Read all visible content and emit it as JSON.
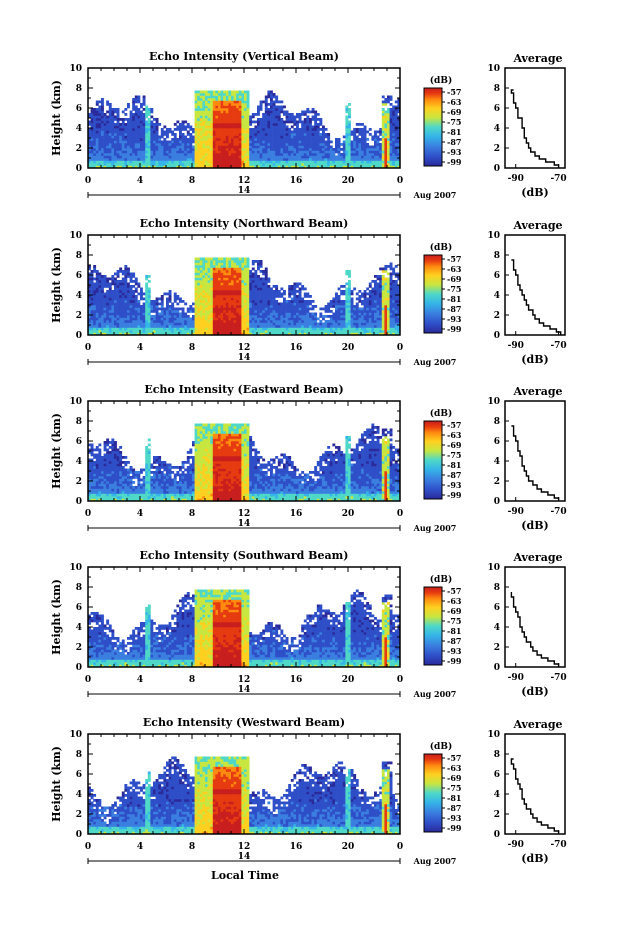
{
  "figure": {
    "xlabel": "Local Time",
    "date_label": "Aug 2007",
    "day_label": "14",
    "colorbar_unit": "(dB)",
    "colorbar_ticks": [
      "-57",
      "-63",
      "-69",
      "-75",
      "-81",
      "-87",
      "-93",
      "-99"
    ],
    "colors": {
      "colormap": [
        "#2a2a9a",
        "#2f4fc8",
        "#3a7fe0",
        "#35b5e8",
        "#4fd8c8",
        "#c8e640",
        "#ffd020",
        "#ff8a10",
        "#e63a10",
        "#c81e1e"
      ]
    }
  },
  "chart_data": [
    {
      "type": "heatmap",
      "title": "Echo Intensity (Vertical Beam)",
      "xlabel": "",
      "ylabel": "Height (km)",
      "xlim": [
        0,
        24
      ],
      "ylim": [
        0,
        10
      ],
      "x_ticks": [
        "0",
        "4",
        "8",
        "12",
        "16",
        "20",
        "0"
      ],
      "y_ticks": [
        "0",
        "2",
        "4",
        "6",
        "8",
        "10"
      ],
      "colorbar": {
        "label": "(dB)",
        "ticks": [
          -57,
          -63,
          -69,
          -75,
          -81,
          -87,
          -93,
          -99
        ]
      },
      "average_profile": {
        "title": "Average",
        "xlabel": "(dB)",
        "x_ticks": [
          "-90",
          "-70"
        ],
        "xlim": [
          -95,
          -67
        ],
        "y_ticks": [
          "0",
          "2",
          "4",
          "6",
          "8",
          "10"
        ],
        "ylim": [
          0,
          10
        ],
        "height": [
          0.0,
          0.3,
          0.6,
          0.9,
          1.2,
          1.6,
          2.0,
          2.5,
          3.0,
          3.5,
          4.0,
          4.5,
          5.0,
          5.5,
          6.0,
          6.5,
          7.0,
          7.5,
          7.8
        ],
        "db": [
          -70,
          -72,
          -76,
          -79,
          -81,
          -83,
          -84,
          -85,
          -86,
          -86,
          -87,
          -87,
          -89,
          -89,
          -90,
          -91,
          -91,
          -92,
          -91
        ]
      }
    },
    {
      "type": "heatmap",
      "title": "Echo Intensity (Northward Beam)",
      "xlabel": "",
      "ylabel": "Height (km)",
      "xlim": [
        0,
        24
      ],
      "ylim": [
        0,
        10
      ],
      "x_ticks": [
        "0",
        "4",
        "8",
        "12",
        "16",
        "20",
        "0"
      ],
      "y_ticks": [
        "0",
        "2",
        "4",
        "6",
        "8",
        "10"
      ],
      "colorbar": {
        "label": "(dB)",
        "ticks": [
          -57,
          -63,
          -69,
          -75,
          -81,
          -87,
          -93,
          -99
        ]
      },
      "average_profile": {
        "title": "Average",
        "xlabel": "(dB)",
        "x_ticks": [
          "-90",
          "-70"
        ],
        "xlim": [
          -95,
          -67
        ],
        "y_ticks": [
          "0",
          "2",
          "4",
          "6",
          "8",
          "10"
        ],
        "ylim": [
          0,
          10
        ],
        "height": [
          0.0,
          0.3,
          0.6,
          0.9,
          1.2,
          1.6,
          2.0,
          2.5,
          3.0,
          3.5,
          4.0,
          4.5,
          5.0,
          5.5,
          6.0,
          6.5,
          7.0,
          7.5
        ],
        "db": [
          -69,
          -71,
          -74,
          -77,
          -79,
          -81,
          -82,
          -84,
          -85,
          -86,
          -87,
          -88,
          -89,
          -89,
          -90,
          -91,
          -91,
          -92
        ]
      }
    },
    {
      "type": "heatmap",
      "title": "Echo Intensity (Eastward Beam)",
      "xlabel": "",
      "ylabel": "Height (km)",
      "xlim": [
        0,
        24
      ],
      "ylim": [
        0,
        10
      ],
      "x_ticks": [
        "0",
        "4",
        "8",
        "12",
        "16",
        "20",
        "0"
      ],
      "y_ticks": [
        "0",
        "2",
        "4",
        "6",
        "8",
        "10"
      ],
      "colorbar": {
        "label": "(dB)",
        "ticks": [
          -57,
          -63,
          -69,
          -75,
          -81,
          -87,
          -93,
          -99
        ]
      },
      "average_profile": {
        "title": "Average",
        "xlabel": "(dB)",
        "x_ticks": [
          "-90",
          "-70"
        ],
        "xlim": [
          -95,
          -67
        ],
        "y_ticks": [
          "0",
          "2",
          "4",
          "6",
          "8",
          "10"
        ],
        "ylim": [
          0,
          10
        ],
        "height": [
          0.0,
          0.3,
          0.6,
          0.9,
          1.2,
          1.6,
          2.0,
          2.5,
          3.0,
          3.5,
          4.0,
          4.5,
          5.0,
          5.5,
          6.0,
          6.5,
          7.0,
          7.5
        ],
        "db": [
          -70,
          -72,
          -75,
          -78,
          -80,
          -82,
          -84,
          -85,
          -86,
          -87,
          -87,
          -88,
          -89,
          -89,
          -90,
          -91,
          -91,
          -92
        ]
      }
    },
    {
      "type": "heatmap",
      "title": "Echo Intensity (Southward Beam)",
      "xlabel": "",
      "ylabel": "Height (km)",
      "xlim": [
        0,
        24
      ],
      "ylim": [
        0,
        10
      ],
      "x_ticks": [
        "0",
        "4",
        "8",
        "12",
        "16",
        "20",
        "0"
      ],
      "y_ticks": [
        "0",
        "2",
        "4",
        "6",
        "8",
        "10"
      ],
      "colorbar": {
        "label": "(dB)",
        "ticks": [
          -57,
          -63,
          -69,
          -75,
          -81,
          -87,
          -93,
          -99
        ]
      },
      "average_profile": {
        "title": "Average",
        "xlabel": "(dB)",
        "x_ticks": [
          "-90",
          "-70"
        ],
        "xlim": [
          -95,
          -67
        ],
        "y_ticks": [
          "0",
          "2",
          "4",
          "6",
          "8",
          "10"
        ],
        "ylim": [
          0,
          10
        ],
        "height": [
          0.0,
          0.3,
          0.6,
          0.9,
          1.2,
          1.6,
          2.0,
          2.5,
          3.0,
          3.5,
          4.0,
          4.5,
          5.0,
          5.5,
          6.0,
          6.5,
          7.0,
          7.5
        ],
        "db": [
          -70,
          -72,
          -75,
          -78,
          -80,
          -82,
          -83,
          -85,
          -86,
          -87,
          -88,
          -88,
          -89,
          -90,
          -91,
          -91,
          -92,
          -92
        ]
      }
    },
    {
      "type": "heatmap",
      "title": "Echo Intensity (Westward Beam)",
      "xlabel": "",
      "ylabel": "Height (km)",
      "xlim": [
        0,
        24
      ],
      "ylim": [
        0,
        10
      ],
      "x_ticks": [
        "0",
        "4",
        "8",
        "12",
        "16",
        "20",
        "0"
      ],
      "y_ticks": [
        "0",
        "2",
        "4",
        "6",
        "8",
        "10"
      ],
      "colorbar": {
        "label": "(dB)",
        "ticks": [
          -57,
          -63,
          -69,
          -75,
          -81,
          -87,
          -93,
          -99
        ]
      },
      "average_profile": {
        "title": "Average",
        "xlabel": "(dB)",
        "x_ticks": [
          "-90",
          "-70"
        ],
        "xlim": [
          -95,
          -67
        ],
        "y_ticks": [
          "0",
          "2",
          "4",
          "6",
          "8",
          "10"
        ],
        "ylim": [
          0,
          10
        ],
        "height": [
          0.0,
          0.3,
          0.6,
          0.9,
          1.2,
          1.6,
          2.0,
          2.5,
          3.0,
          3.5,
          4.0,
          4.5,
          5.0,
          5.5,
          6.0,
          6.5,
          7.0,
          7.5
        ],
        "db": [
          -70,
          -72,
          -75,
          -78,
          -80,
          -82,
          -83,
          -85,
          -86,
          -87,
          -87,
          -88,
          -89,
          -90,
          -90,
          -91,
          -92,
          -91
        ]
      }
    }
  ]
}
